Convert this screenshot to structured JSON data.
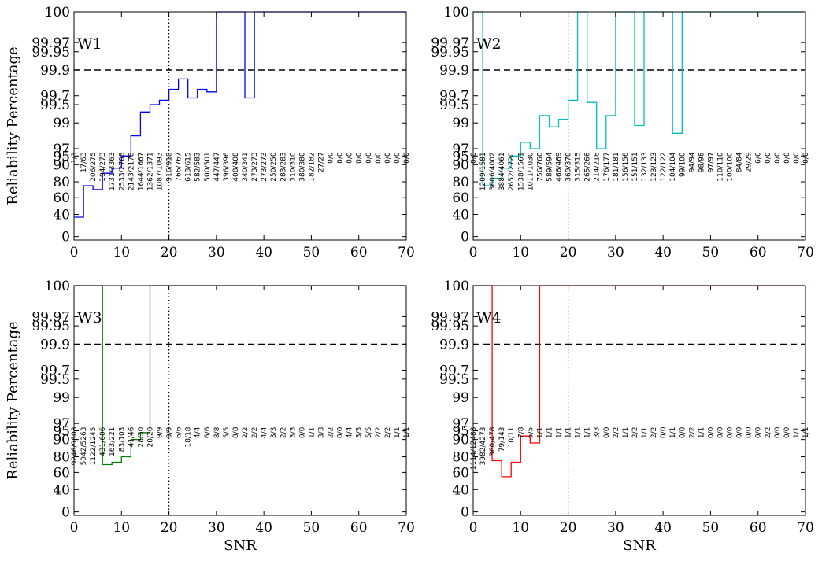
{
  "chart_data": {
    "type": "line",
    "y_scale": "reliability (non-linear)",
    "threshold_line": 99.9,
    "ref_x": 20,
    "xlim": [
      0,
      70
    ],
    "ytick_labels": [
      "0",
      "40",
      "60",
      "80",
      "90",
      "95",
      "97",
      "99",
      "99.5",
      "99.7",
      "99.9",
      "99.95",
      "99.97",
      "100"
    ],
    "xtick_labels": [
      "0",
      "10",
      "20",
      "30",
      "40",
      "50",
      "60",
      "70"
    ],
    "ylabel": "Reliability Percentage",
    "xlabel": "SNR",
    "panels": [
      {
        "name": "W1",
        "color": "#0000ff",
        "x": [
          0,
          2,
          4,
          6,
          8,
          10,
          12,
          14,
          16,
          18,
          20,
          22,
          24,
          26,
          28,
          30,
          32,
          34,
          36,
          38,
          40,
          42,
          44,
          46,
          48,
          50,
          52,
          54,
          56,
          58,
          60,
          62,
          64,
          66,
          68,
          70
        ],
        "y": [
          35,
          75,
          70,
          85,
          88,
          95,
          98,
          99.3,
          99.5,
          99.6,
          99.75,
          99.83,
          99.65,
          99.75,
          99.73,
          100,
          100,
          100,
          99.65,
          100,
          100,
          100,
          100,
          100,
          100,
          100,
          100,
          100,
          100,
          100,
          100,
          100,
          100,
          100,
          100,
          100
        ],
        "labels": [
          "1/3",
          "17/63",
          "206/275",
          "194/273",
          "1731/3363",
          "2533/2708",
          "2143/2178",
          "1644/1667",
          "1362/1371",
          "1087/1093",
          "916/918",
          "766/767",
          "613/615",
          "582/583",
          "500/501",
          "447/447",
          "396/396",
          "408/408",
          "340/341",
          "273/273",
          "273/273",
          "250/250",
          "283/283",
          "310/310",
          "380/380",
          "182/182",
          "27/27",
          "0/0",
          "0/0",
          "0/0",
          "0/0",
          "0/0",
          "0/0",
          "0/0",
          "0/0",
          "0/0"
        ]
      },
      {
        "name": "W2",
        "color": "#00bfbf",
        "x": [
          0,
          2,
          4,
          6,
          8,
          10,
          12,
          14,
          16,
          18,
          20,
          22,
          24,
          26,
          28,
          30,
          32,
          34,
          36,
          38,
          40,
          42,
          44,
          46,
          48,
          50,
          52,
          54,
          56,
          58,
          60,
          62,
          64,
          66,
          68,
          70
        ],
        "y": [
          100,
          75,
          82,
          88,
          95,
          97.5,
          97,
          99.2,
          98.7,
          99.1,
          99.6,
          100,
          99.55,
          97,
          99.2,
          100,
          100,
          98.8,
          100,
          100,
          100,
          98.2,
          100,
          100,
          100,
          100,
          100,
          100,
          100,
          100,
          100,
          100,
          100,
          100,
          100,
          100
        ],
        "labels": [
          "0/0",
          "1209/1581",
          "3606/4002",
          "3884/4061",
          "2652/2720",
          "1538/1561",
          "1011/1030",
          "756/760",
          "589/594",
          "466/469",
          "369/370",
          "315/315",
          "265/266",
          "214/218",
          "176/177",
          "181/181",
          "156/156",
          "151/151",
          "132/133",
          "123/123",
          "122/122",
          "104/104",
          "99/100",
          "94/94",
          "98/98",
          "97/97",
          "110/110",
          "100/100",
          "84/84",
          "29/29",
          "6/6",
          "0/0",
          "0/0",
          "0/0",
          "0/0",
          "0/0"
        ]
      },
      {
        "name": "W3",
        "color": "#007f00",
        "x": [
          0,
          2,
          4,
          6,
          8,
          10,
          12,
          14,
          16,
          18,
          20,
          22,
          24,
          26,
          28,
          30,
          32,
          34,
          36,
          38,
          40,
          42,
          44,
          46,
          48,
          50,
          52,
          54,
          56,
          58,
          60,
          62,
          64,
          66,
          68,
          70
        ],
        "y": [
          100,
          100,
          100,
          70,
          73,
          80,
          90,
          94,
          100,
          100,
          100,
          100,
          100,
          100,
          100,
          100,
          100,
          100,
          100,
          100,
          100,
          100,
          100,
          100,
          100,
          100,
          100,
          100,
          100,
          100,
          100,
          100,
          100,
          100,
          100,
          100
        ],
        "labels": [
          "9246/9603",
          "5042/5263",
          "1122/1245",
          "431/606",
          "163/221",
          "83/103",
          "41/46",
          "28/30",
          "20/20",
          "9/9",
          "9/9",
          "6/6",
          "18/18",
          "4/4",
          "6/6",
          "8/8",
          "5/5",
          "8/8",
          "2/2",
          "2/2",
          "4/4",
          "3/3",
          "2/2",
          "3/3",
          "0/0",
          "1/1",
          "3/3",
          "2/2",
          "0/0",
          "4/4",
          "5/5",
          "5/5",
          "2/2",
          "2/2",
          "1/1",
          "1/1"
        ]
      },
      {
        "name": "W4",
        "color": "#ff0000",
        "x": [
          0,
          2,
          4,
          6,
          8,
          10,
          12,
          14,
          16,
          18,
          20,
          22,
          24,
          26,
          28,
          30,
          32,
          34,
          36,
          38,
          40,
          42,
          44,
          46,
          48,
          50,
          52,
          54,
          56,
          58,
          60,
          62,
          64,
          66,
          68,
          70
        ],
        "y": [
          100,
          100,
          75,
          55,
          73,
          92,
          88,
          100,
          100,
          100,
          100,
          100,
          100,
          100,
          100,
          100,
          100,
          100,
          100,
          100,
          100,
          100,
          100,
          100,
          100,
          100,
          100,
          100,
          100,
          100,
          100,
          100,
          100,
          100,
          100,
          100
        ],
        "labels": [
          "1114/12488",
          "3982/4273",
          "360/478",
          "79/143",
          "10/11",
          "7/8",
          "5/5",
          "1/1",
          "1/1",
          "1/1",
          "1/1",
          "1/1",
          "1/1",
          "3/3",
          "0/0",
          "2/2",
          "1/1",
          "2/2",
          "1/1",
          "2/2",
          "0/0",
          "1/1",
          "0/0",
          "2/2",
          "1/1",
          "0/0",
          "0/0",
          "0/0",
          "0/0",
          "0/0",
          "0/0",
          "2/2",
          "0/0",
          "0/0",
          "1/1",
          "1/1"
        ]
      }
    ]
  }
}
